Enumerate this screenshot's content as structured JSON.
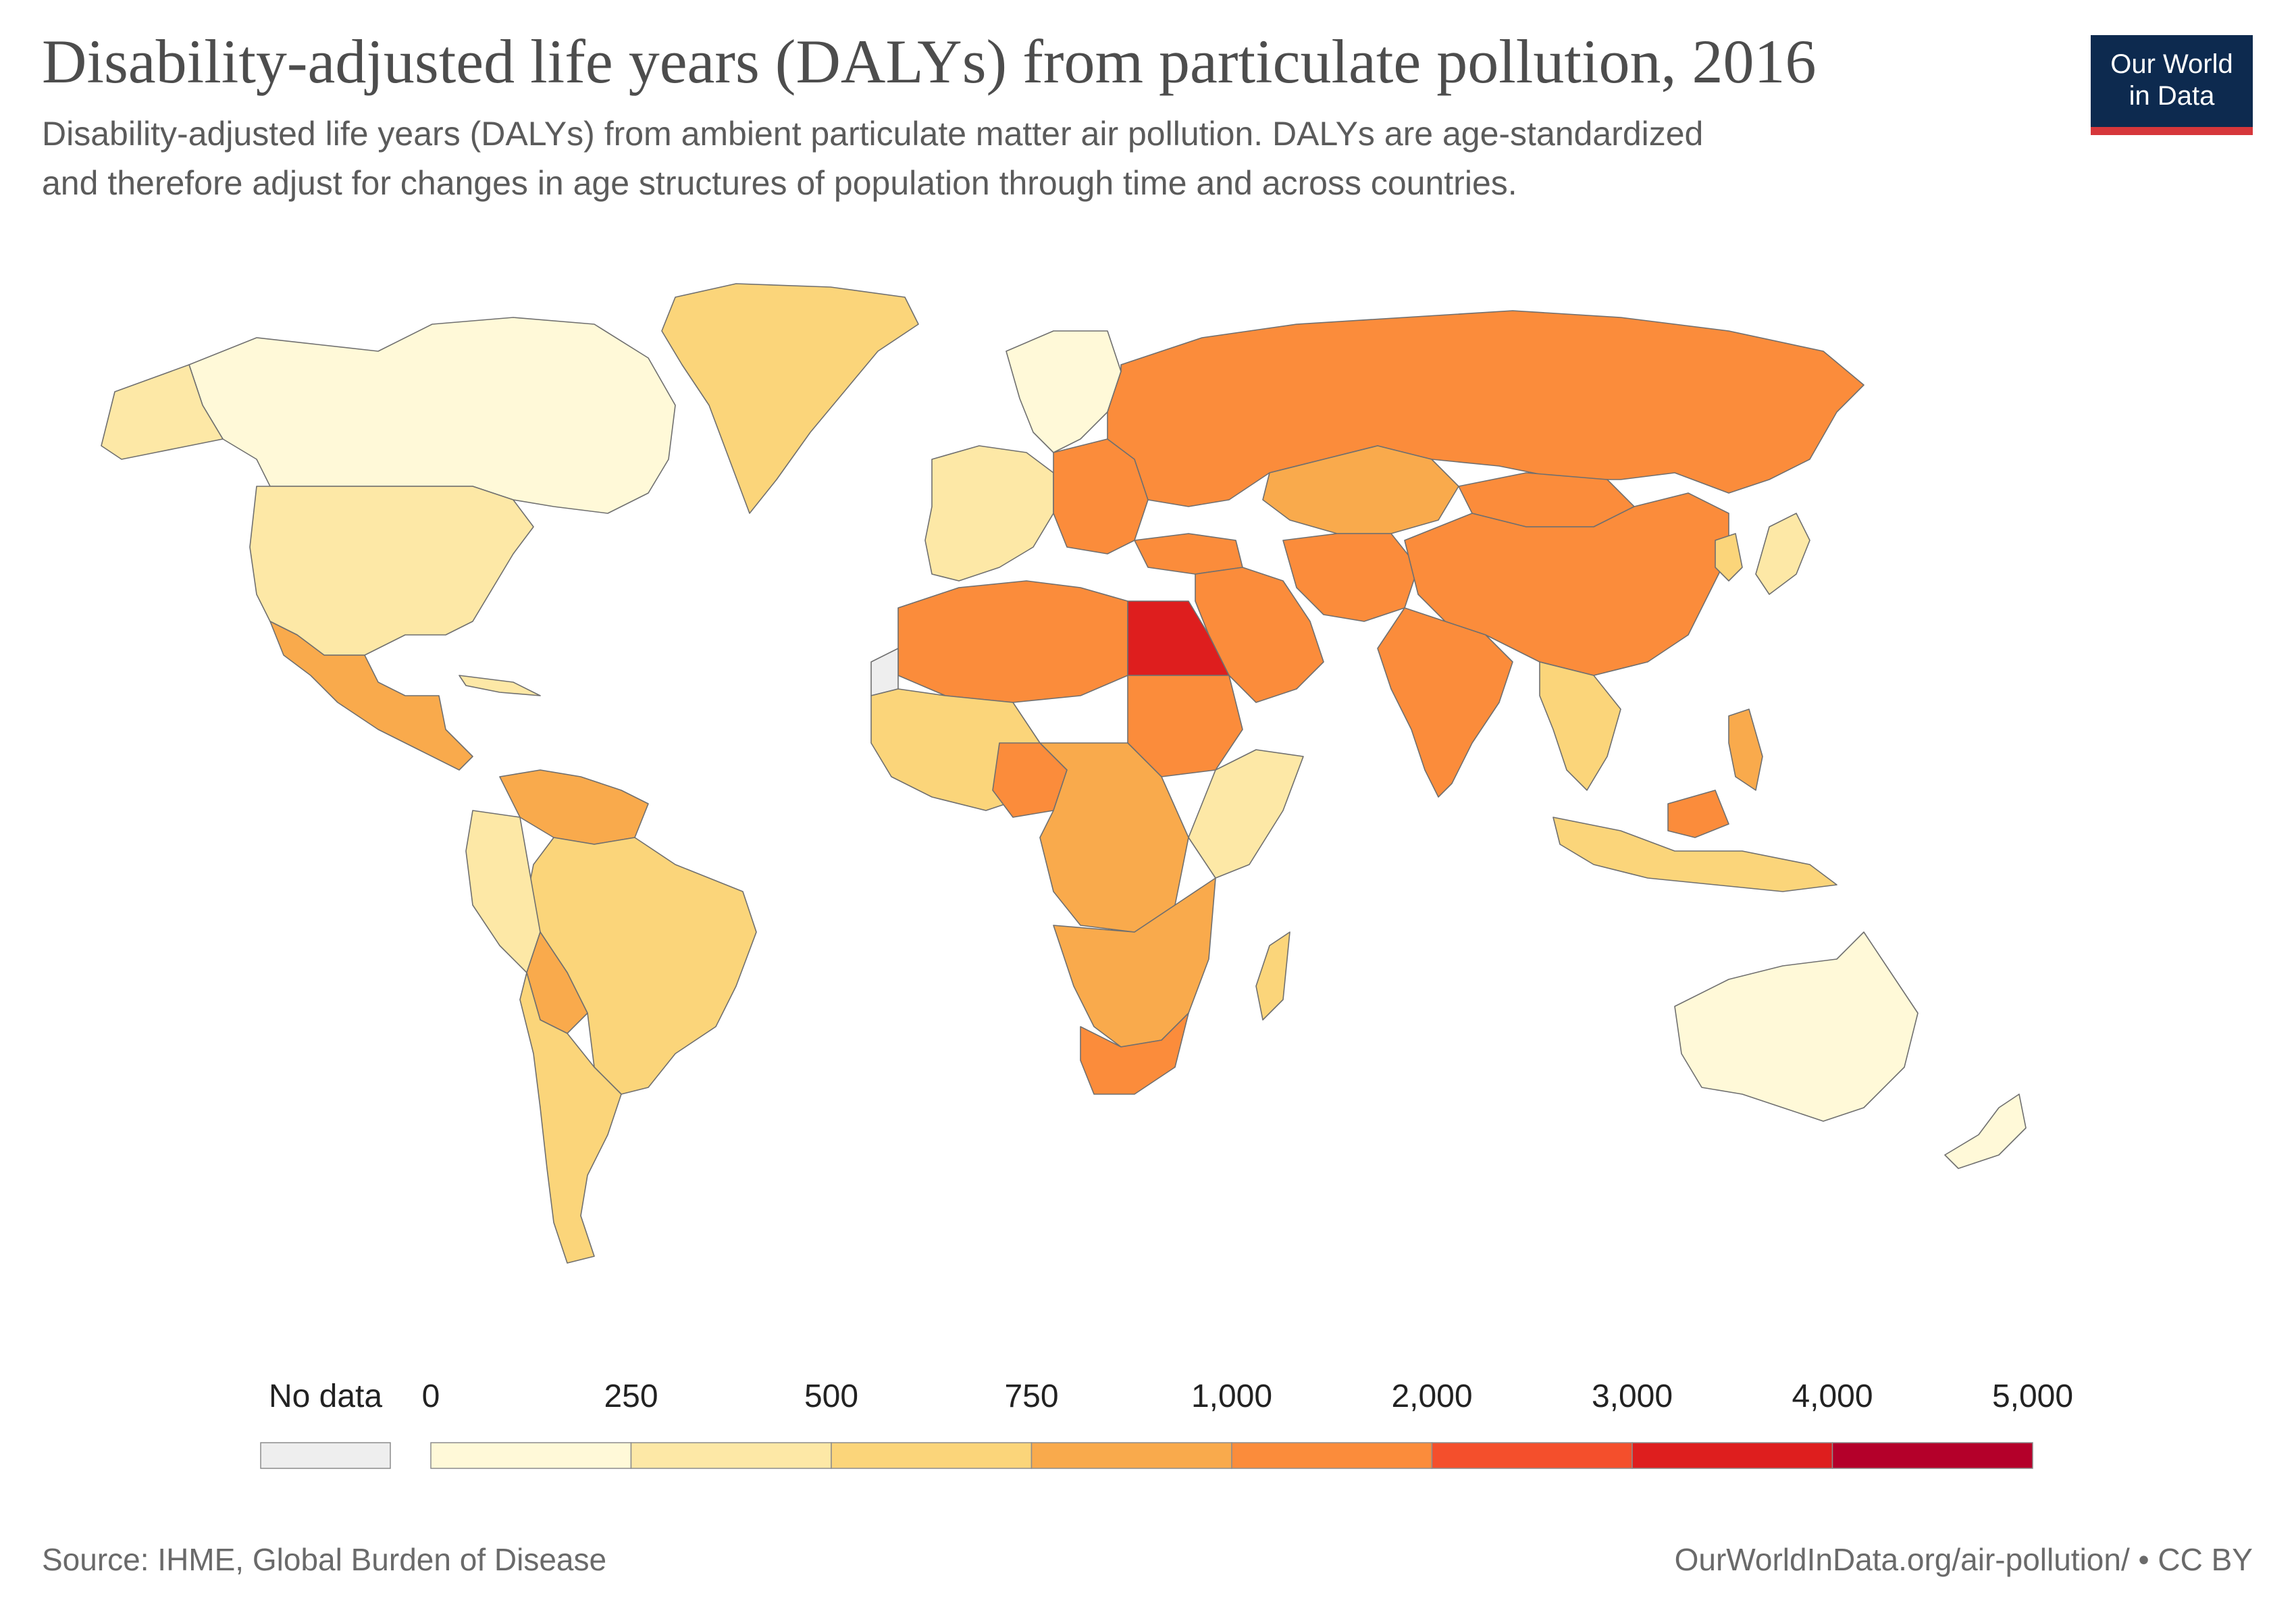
{
  "header": {
    "title": "Disability-adjusted life years (DALYs) from particulate pollution, 2016",
    "subtitle_line1": "Disability-adjusted life years (DALYs) from ambient particulate matter air pollution. DALYs are age-standardized",
    "subtitle_line2": "and therefore adjust for changes in age structures of population through time and across countries.",
    "logo_line1": "Our World",
    "logo_line2": "in Data"
  },
  "legend": {
    "no_data_label": "No data",
    "no_data_color": "#eeeeee",
    "ticks": [
      "0",
      "250",
      "500",
      "750",
      "1,000",
      "2,000",
      "3,000",
      "4,000",
      "5,000"
    ],
    "bins": [
      {
        "from": 0,
        "to": 250,
        "color": "#fff9d8"
      },
      {
        "from": 250,
        "to": 500,
        "color": "#fde8a6"
      },
      {
        "from": 500,
        "to": 750,
        "color": "#fbd57a"
      },
      {
        "from": 750,
        "to": 1000,
        "color": "#f9aa4c"
      },
      {
        "from": 1000,
        "to": 2000,
        "color": "#fb8c3b"
      },
      {
        "from": 2000,
        "to": 3000,
        "color": "#f44f2c"
      },
      {
        "from": 3000,
        "to": 4000,
        "color": "#de1e1e"
      },
      {
        "from": 4000,
        "to": 5000,
        "color": "#b4002a"
      }
    ]
  },
  "footer": {
    "source": "Source: IHME, Global Burden of Disease",
    "url": "OurWorldInData.org/air-pollution/ • CC BY"
  }
}
